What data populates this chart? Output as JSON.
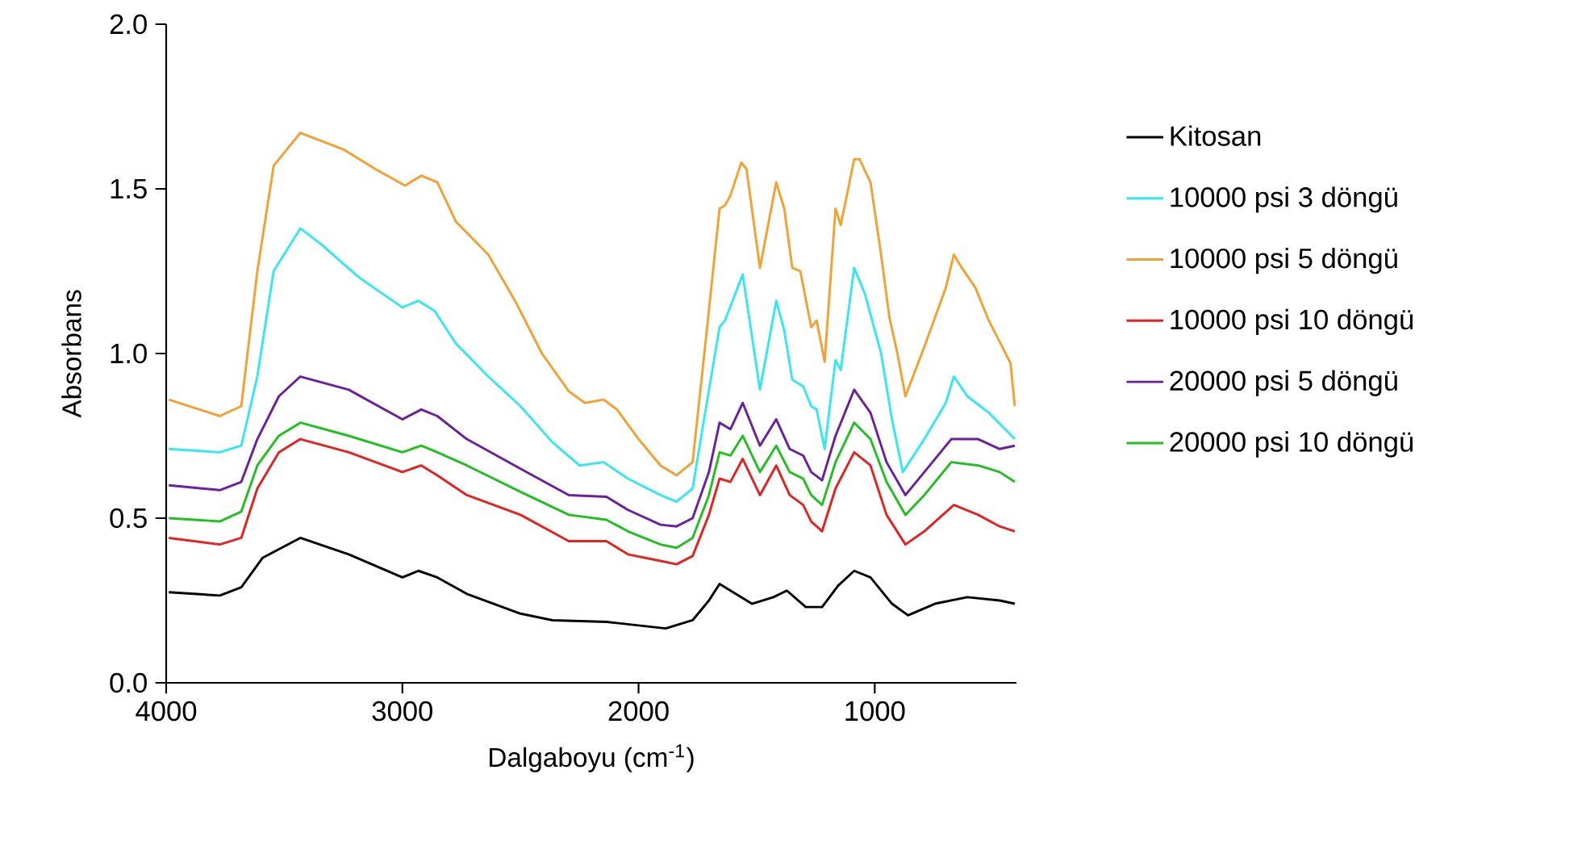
{
  "chart_data": {
    "type": "line",
    "xlabel": "Dalgaboyu (cm$^{-1}$)",
    "ylabel": "Absorbans",
    "xlim": [
      4000,
      400
    ],
    "ylim": [
      0,
      2
    ],
    "xticks": [
      4000,
      3000,
      2000,
      1000
    ],
    "yticks": [
      {
        "value": 0,
        "label": "0.0"
      },
      {
        "value": 0.5,
        "label": "0.5"
      },
      {
        "value": 1,
        "label": "1.0"
      },
      {
        "value": 1.5,
        "label": "1.5"
      },
      {
        "value": 2,
        "label": "2.0"
      }
    ],
    "grid": false,
    "legend": "right",
    "line_style": "solid",
    "marker": "none",
    "series": [
      {
        "name": "Kitosan",
        "color": "#000000",
        "x": [
          3989,
          3773,
          3682,
          3591,
          3432,
          3227,
          3000,
          2932,
          2852,
          2727,
          2500,
          2364,
          2136,
          1885,
          1771,
          1702,
          1657,
          1611,
          1520,
          1429,
          1372,
          1292,
          1223,
          1155,
          1087,
          1018,
          927,
          859,
          745,
          608,
          471,
          407
        ],
        "values": [
          0.275,
          0.265,
          0.29,
          0.38,
          0.44,
          0.39,
          0.32,
          0.34,
          0.32,
          0.27,
          0.21,
          0.19,
          0.185,
          0.165,
          0.19,
          0.25,
          0.3,
          0.28,
          0.24,
          0.26,
          0.28,
          0.23,
          0.23,
          0.295,
          0.34,
          0.32,
          0.24,
          0.205,
          0.24,
          0.26,
          0.25,
          0.24
        ]
      },
      {
        "name": "10000 psi 3 döngü",
        "color": "#33e8f0",
        "x": [
          3989,
          3773,
          3682,
          3614,
          3545,
          3432,
          3341,
          3182,
          3000,
          2932,
          2864,
          2773,
          2636,
          2500,
          2364,
          2250,
          2148,
          2045,
          1907,
          1839,
          1771,
          1725,
          1657,
          1634,
          1559,
          1486,
          1417,
          1383,
          1349,
          1303,
          1269,
          1246,
          1212,
          1166,
          1144,
          1087,
          1041,
          973,
          927,
          881,
          790,
          699,
          665,
          608,
          517,
          448,
          407
        ],
        "values": [
          0.71,
          0.7,
          0.72,
          0.93,
          1.25,
          1.38,
          1.33,
          1.23,
          1.14,
          1.16,
          1.13,
          1.03,
          0.93,
          0.84,
          0.73,
          0.66,
          0.67,
          0.62,
          0.57,
          0.55,
          0.59,
          0.79,
          1.08,
          1.1,
          1.24,
          0.89,
          1.16,
          1.07,
          0.92,
          0.9,
          0.84,
          0.83,
          0.71,
          0.98,
          0.95,
          1.26,
          1.18,
          1.0,
          0.8,
          0.64,
          0.74,
          0.85,
          0.93,
          0.87,
          0.82,
          0.77,
          0.74
        ]
      },
      {
        "name": "10000 psi 5 döngü",
        "color": "#f5a030",
        "x": [
          3989,
          3773,
          3682,
          3614,
          3545,
          3432,
          3250,
          3114,
          2989,
          2920,
          2852,
          2773,
          2636,
          2523,
          2409,
          2295,
          2227,
          2148,
          2091,
          2000,
          1907,
          1839,
          1771,
          1714,
          1657,
          1634,
          1611,
          1565,
          1543,
          1486,
          1417,
          1383,
          1349,
          1315,
          1269,
          1246,
          1212,
          1166,
          1144,
          1121,
          1087,
          1064,
          1018,
          973,
          938,
          904,
          870,
          790,
          699,
          665,
          631,
          574,
          517,
          460,
          425,
          407
        ],
        "values": [
          0.86,
          0.81,
          0.84,
          1.25,
          1.57,
          1.67,
          1.62,
          1.56,
          1.51,
          1.54,
          1.52,
          1.4,
          1.3,
          1.16,
          1.0,
          0.885,
          0.85,
          0.86,
          0.83,
          0.74,
          0.66,
          0.63,
          0.67,
          1.05,
          1.44,
          1.45,
          1.48,
          1.58,
          1.56,
          1.26,
          1.52,
          1.44,
          1.26,
          1.25,
          1.08,
          1.1,
          0.975,
          1.44,
          1.39,
          1.47,
          1.59,
          1.59,
          1.52,
          1.3,
          1.11,
          1.0,
          0.87,
          1.02,
          1.2,
          1.3,
          1.26,
          1.2,
          1.1,
          1.02,
          0.97,
          0.84
        ]
      },
      {
        "name": "10000 psi 10 döngü",
        "color": "#e82020",
        "x": [
          3989,
          3773,
          3682,
          3614,
          3523,
          3432,
          3227,
          3000,
          2920,
          2852,
          2727,
          2500,
          2295,
          2136,
          2045,
          1907,
          1839,
          1771,
          1702,
          1657,
          1611,
          1559,
          1486,
          1417,
          1360,
          1303,
          1269,
          1223,
          1166,
          1087,
          1018,
          950,
          870,
          790,
          665,
          562,
          471,
          407
        ],
        "values": [
          0.44,
          0.42,
          0.44,
          0.59,
          0.7,
          0.74,
          0.7,
          0.64,
          0.66,
          0.63,
          0.57,
          0.51,
          0.43,
          0.43,
          0.39,
          0.37,
          0.36,
          0.385,
          0.51,
          0.62,
          0.61,
          0.68,
          0.57,
          0.66,
          0.57,
          0.54,
          0.49,
          0.46,
          0.59,
          0.7,
          0.66,
          0.51,
          0.42,
          0.46,
          0.54,
          0.51,
          0.475,
          0.46
        ]
      },
      {
        "name": "20000 psi 5 döngü",
        "color": "#6a1fa0",
        "x": [
          3989,
          3773,
          3682,
          3614,
          3523,
          3432,
          3227,
          3000,
          2920,
          2852,
          2727,
          2500,
          2295,
          2136,
          2045,
          1907,
          1839,
          1771,
          1702,
          1657,
          1611,
          1559,
          1486,
          1417,
          1360,
          1303,
          1269,
          1223,
          1166,
          1087,
          1018,
          950,
          870,
          790,
          676,
          562,
          471,
          407
        ],
        "values": [
          0.6,
          0.585,
          0.61,
          0.74,
          0.87,
          0.93,
          0.89,
          0.8,
          0.83,
          0.81,
          0.74,
          0.65,
          0.57,
          0.565,
          0.525,
          0.48,
          0.475,
          0.5,
          0.64,
          0.79,
          0.77,
          0.85,
          0.72,
          0.8,
          0.71,
          0.69,
          0.64,
          0.615,
          0.75,
          0.89,
          0.82,
          0.67,
          0.57,
          0.64,
          0.74,
          0.74,
          0.71,
          0.72
        ]
      },
      {
        "name": "20000 psi 10 döngü",
        "color": "#20c020",
        "x": [
          3989,
          3773,
          3682,
          3614,
          3523,
          3432,
          3227,
          3000,
          2920,
          2852,
          2727,
          2500,
          2295,
          2136,
          2045,
          1907,
          1839,
          1771,
          1702,
          1657,
          1611,
          1559,
          1486,
          1417,
          1360,
          1303,
          1269,
          1223,
          1166,
          1087,
          1018,
          950,
          870,
          790,
          676,
          562,
          471,
          407
        ],
        "values": [
          0.5,
          0.49,
          0.52,
          0.66,
          0.75,
          0.79,
          0.75,
          0.7,
          0.72,
          0.7,
          0.66,
          0.58,
          0.51,
          0.495,
          0.46,
          0.42,
          0.41,
          0.44,
          0.57,
          0.7,
          0.69,
          0.75,
          0.64,
          0.72,
          0.64,
          0.62,
          0.57,
          0.54,
          0.67,
          0.79,
          0.74,
          0.61,
          0.51,
          0.57,
          0.67,
          0.66,
          0.64,
          0.61
        ]
      }
    ]
  }
}
